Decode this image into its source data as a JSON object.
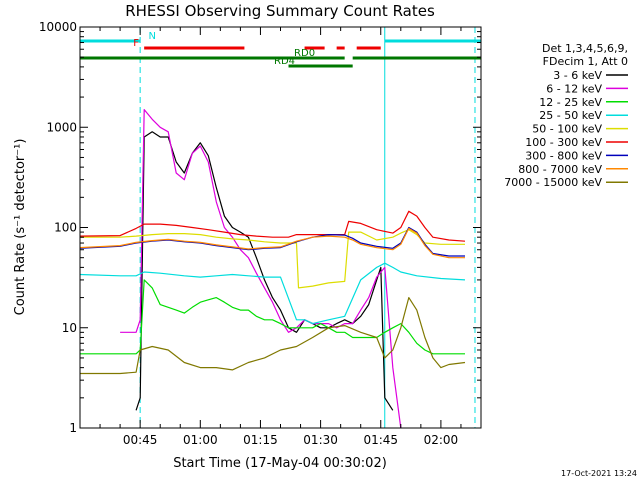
{
  "chart_data": {
    "type": "line",
    "title": "RHESSI Observing Summary Count Rates",
    "xlabel": "Start Time (17-May-04 00:30:02)",
    "ylabel": "Count Rate (s⁻¹ detector⁻¹)",
    "y_scale": "log",
    "ylim": [
      1,
      10000
    ],
    "xlim_minutes": [
      30,
      130
    ],
    "x_ticks": [
      {
        "m": 45,
        "label": "00:45"
      },
      {
        "m": 60,
        "label": "01:00"
      },
      {
        "m": 75,
        "label": "01:15"
      },
      {
        "m": 90,
        "label": "01:30"
      },
      {
        "m": 105,
        "label": "01:45"
      },
      {
        "m": 120,
        "label": "02:00"
      }
    ],
    "y_ticks": [
      {
        "v": 1,
        "label": "1"
      },
      {
        "v": 10,
        "label": "10"
      },
      {
        "v": 100,
        "label": "100"
      },
      {
        "v": 1000,
        "label": "1000"
      },
      {
        "v": 10000,
        "label": "10000"
      }
    ],
    "legend_header": [
      "Det 1,3,4,5,6,9,",
      "FDecim 1, Att 0"
    ],
    "series": [
      {
        "name": "3 - 6 keV",
        "color": "#000000",
        "points": [
          [
            30,
            null
          ],
          [
            44,
            1.5
          ],
          [
            45,
            2
          ],
          [
            46,
            800
          ],
          [
            48,
            900
          ],
          [
            50,
            800
          ],
          [
            52,
            800
          ],
          [
            54,
            450
          ],
          [
            56,
            350
          ],
          [
            58,
            550
          ],
          [
            60,
            700
          ],
          [
            62,
            520
          ],
          [
            64,
            250
          ],
          [
            66,
            130
          ],
          [
            68,
            100
          ],
          [
            70,
            90
          ],
          [
            72,
            80
          ],
          [
            74,
            50
          ],
          [
            76,
            30
          ],
          [
            78,
            20
          ],
          [
            80,
            15
          ],
          [
            82,
            10
          ],
          [
            84,
            9
          ],
          [
            86,
            12
          ],
          [
            88,
            11
          ],
          [
            90,
            10
          ],
          [
            92,
            10
          ],
          [
            94,
            11
          ],
          [
            96,
            12
          ],
          [
            98,
            11
          ],
          [
            100,
            13
          ],
          [
            102,
            17
          ],
          [
            104,
            30
          ],
          [
            105,
            40
          ],
          [
            106,
            2
          ],
          [
            108,
            1.5
          ],
          [
            110,
            null
          ]
        ]
      },
      {
        "name": "6 - 12 keV",
        "color": "#dd00dd",
        "points": [
          [
            40,
            9
          ],
          [
            44,
            9
          ],
          [
            45,
            12
          ],
          [
            46,
            1500
          ],
          [
            48,
            1200
          ],
          [
            50,
            1000
          ],
          [
            52,
            900
          ],
          [
            54,
            350
          ],
          [
            56,
            300
          ],
          [
            58,
            550
          ],
          [
            60,
            650
          ],
          [
            62,
            450
          ],
          [
            64,
            180
          ],
          [
            66,
            100
          ],
          [
            68,
            80
          ],
          [
            70,
            60
          ],
          [
            72,
            50
          ],
          [
            74,
            35
          ],
          [
            76,
            25
          ],
          [
            78,
            18
          ],
          [
            80,
            12
          ],
          [
            82,
            9
          ],
          [
            84,
            10
          ],
          [
            86,
            12
          ],
          [
            88,
            11
          ],
          [
            90,
            11
          ],
          [
            92,
            11
          ],
          [
            94,
            10
          ],
          [
            96,
            11
          ],
          [
            98,
            11
          ],
          [
            100,
            15
          ],
          [
            102,
            20
          ],
          [
            104,
            32
          ],
          [
            106,
            40
          ],
          [
            108,
            4
          ],
          [
            110,
            1
          ]
        ]
      },
      {
        "name": "12 - 25 keV",
        "color": "#00dd00",
        "points": [
          [
            30,
            5.5
          ],
          [
            44,
            5.5
          ],
          [
            45,
            6
          ],
          [
            46,
            30
          ],
          [
            48,
            25
          ],
          [
            50,
            17
          ],
          [
            52,
            16
          ],
          [
            54,
            15
          ],
          [
            56,
            14
          ],
          [
            58,
            16
          ],
          [
            60,
            18
          ],
          [
            62,
            19
          ],
          [
            64,
            20
          ],
          [
            66,
            18
          ],
          [
            68,
            16
          ],
          [
            70,
            15
          ],
          [
            72,
            15
          ],
          [
            74,
            13
          ],
          [
            76,
            12
          ],
          [
            78,
            12
          ],
          [
            80,
            11
          ],
          [
            82,
            10
          ],
          [
            84,
            10
          ],
          [
            86,
            10
          ],
          [
            88,
            10
          ],
          [
            90,
            11
          ],
          [
            92,
            10
          ],
          [
            94,
            9
          ],
          [
            96,
            9
          ],
          [
            98,
            8
          ],
          [
            100,
            8
          ],
          [
            102,
            8
          ],
          [
            104,
            8
          ],
          [
            106,
            9
          ],
          [
            108,
            10
          ],
          [
            110,
            11
          ],
          [
            112,
            9
          ],
          [
            114,
            7
          ],
          [
            116,
            6
          ],
          [
            118,
            5.5
          ],
          [
            122,
            5.5
          ],
          [
            126,
            5.5
          ]
        ]
      },
      {
        "name": "25 - 50 keV",
        "color": "#00dddd",
        "points": [
          [
            30,
            34
          ],
          [
            40,
            33
          ],
          [
            44,
            33
          ],
          [
            46,
            36
          ],
          [
            50,
            35
          ],
          [
            56,
            33
          ],
          [
            60,
            32
          ],
          [
            64,
            33
          ],
          [
            68,
            34
          ],
          [
            72,
            33
          ],
          [
            76,
            32
          ],
          [
            80,
            32
          ],
          [
            84,
            12
          ],
          [
            86,
            12
          ],
          [
            88,
            11
          ],
          [
            92,
            12
          ],
          [
            96,
            13
          ],
          [
            100,
            30
          ],
          [
            104,
            40
          ],
          [
            106,
            44
          ],
          [
            108,
            40
          ],
          [
            110,
            36
          ],
          [
            114,
            33
          ],
          [
            120,
            31
          ],
          [
            126,
            30
          ]
        ]
      },
      {
        "name": "50 - 100 keV",
        "color": "#dddd00",
        "points": [
          [
            30,
            80
          ],
          [
            40,
            80
          ],
          [
            44,
            82
          ],
          [
            48,
            85
          ],
          [
            52,
            87
          ],
          [
            56,
            87
          ],
          [
            60,
            85
          ],
          [
            64,
            80
          ],
          [
            68,
            77
          ],
          [
            72,
            75
          ],
          [
            76,
            72
          ],
          [
            80,
            70
          ],
          [
            84,
            70
          ],
          [
            84.5,
            25
          ],
          [
            88,
            26
          ],
          [
            92,
            28
          ],
          [
            96,
            29
          ],
          [
            97,
            90
          ],
          [
            100,
            90
          ],
          [
            104,
            75
          ],
          [
            108,
            80
          ],
          [
            110,
            88
          ],
          [
            112,
            95
          ],
          [
            114,
            85
          ],
          [
            116,
            70
          ],
          [
            120,
            68
          ],
          [
            126,
            68
          ]
        ]
      },
      {
        "name": "100 - 300 keV",
        "color": "#ee0000",
        "points": [
          [
            30,
            82
          ],
          [
            40,
            83
          ],
          [
            44,
            98
          ],
          [
            46,
            108
          ],
          [
            50,
            108
          ],
          [
            54,
            105
          ],
          [
            58,
            100
          ],
          [
            62,
            95
          ],
          [
            66,
            90
          ],
          [
            70,
            85
          ],
          [
            74,
            82
          ],
          [
            78,
            80
          ],
          [
            82,
            80
          ],
          [
            84,
            85
          ],
          [
            88,
            85
          ],
          [
            92,
            85
          ],
          [
            96,
            85
          ],
          [
            97,
            115
          ],
          [
            100,
            110
          ],
          [
            104,
            95
          ],
          [
            108,
            88
          ],
          [
            110,
            100
          ],
          [
            112,
            145
          ],
          [
            114,
            130
          ],
          [
            116,
            100
          ],
          [
            118,
            80
          ],
          [
            122,
            75
          ],
          [
            126,
            73
          ]
        ]
      },
      {
        "name": "300 - 800 keV",
        "color": "#0000bb",
        "points": [
          [
            30,
            62
          ],
          [
            40,
            65
          ],
          [
            44,
            70
          ],
          [
            48,
            73
          ],
          [
            52,
            75
          ],
          [
            56,
            72
          ],
          [
            60,
            70
          ],
          [
            64,
            66
          ],
          [
            68,
            63
          ],
          [
            72,
            60
          ],
          [
            76,
            62
          ],
          [
            80,
            63
          ],
          [
            84,
            72
          ],
          [
            88,
            80
          ],
          [
            92,
            85
          ],
          [
            96,
            84
          ],
          [
            98,
            78
          ],
          [
            100,
            70
          ],
          [
            104,
            65
          ],
          [
            108,
            62
          ],
          [
            110,
            70
          ],
          [
            112,
            100
          ],
          [
            114,
            90
          ],
          [
            116,
            68
          ],
          [
            118,
            55
          ],
          [
            122,
            52
          ],
          [
            126,
            52
          ]
        ]
      },
      {
        "name": "800 - 7000 keV",
        "color": "#ff8800",
        "points": [
          [
            30,
            63
          ],
          [
            40,
            66
          ],
          [
            44,
            71
          ],
          [
            48,
            74
          ],
          [
            52,
            76
          ],
          [
            56,
            73
          ],
          [
            60,
            71
          ],
          [
            64,
            67
          ],
          [
            68,
            64
          ],
          [
            72,
            61
          ],
          [
            76,
            63
          ],
          [
            80,
            64
          ],
          [
            84,
            73
          ],
          [
            88,
            80
          ],
          [
            92,
            82
          ],
          [
            96,
            80
          ],
          [
            98,
            75
          ],
          [
            100,
            68
          ],
          [
            104,
            63
          ],
          [
            108,
            60
          ],
          [
            110,
            68
          ],
          [
            112,
            98
          ],
          [
            114,
            88
          ],
          [
            116,
            66
          ],
          [
            118,
            54
          ],
          [
            122,
            50
          ],
          [
            126,
            50
          ]
        ]
      },
      {
        "name": "7000 - 15000 keV",
        "color": "#807800",
        "points": [
          [
            30,
            3.5
          ],
          [
            40,
            3.5
          ],
          [
            44,
            3.6
          ],
          [
            45,
            6
          ],
          [
            48,
            6.5
          ],
          [
            52,
            6
          ],
          [
            56,
            4.5
          ],
          [
            60,
            4
          ],
          [
            64,
            4
          ],
          [
            68,
            3.8
          ],
          [
            72,
            4.5
          ],
          [
            76,
            5
          ],
          [
            80,
            6
          ],
          [
            84,
            6.5
          ],
          [
            88,
            8
          ],
          [
            92,
            10
          ],
          [
            96,
            10.5
          ],
          [
            100,
            9
          ],
          [
            104,
            8
          ],
          [
            106,
            5
          ],
          [
            108,
            6
          ],
          [
            110,
            10
          ],
          [
            112,
            20
          ],
          [
            114,
            15
          ],
          [
            116,
            8
          ],
          [
            118,
            5
          ],
          [
            120,
            4
          ],
          [
            122,
            4.3
          ],
          [
            126,
            4.5
          ]
        ]
      }
    ],
    "flags": [
      {
        "label": "N",
        "color": "#00dddd",
        "segments": [
          [
            30,
            45
          ],
          [
            106,
            130
          ]
        ]
      },
      {
        "label": "F",
        "color": "#ee0000",
        "segments": [
          [
            46,
            71
          ],
          [
            86,
            91
          ],
          [
            94,
            96
          ],
          [
            99,
            105
          ]
        ]
      },
      {
        "label": "RD0",
        "color": "#007700",
        "segments": [
          [
            30,
            96
          ],
          [
            98,
            130
          ]
        ]
      },
      {
        "label": "RD4",
        "color": "#007700",
        "segments": [
          [
            82,
            98
          ]
        ]
      }
    ],
    "vertical_markers": [
      {
        "m": 30,
        "style": "solid",
        "color": "#00dddd"
      },
      {
        "m": 45,
        "style": "dashed",
        "color": "#00dddd"
      },
      {
        "m": 106,
        "style": "solid",
        "color": "#00dddd"
      },
      {
        "m": 128.5,
        "style": "dashed",
        "color": "#00dddd"
      }
    ],
    "grid": false,
    "legend_position": "right"
  },
  "footer": {
    "timestamp": "17-Oct-2021 13:24"
  }
}
